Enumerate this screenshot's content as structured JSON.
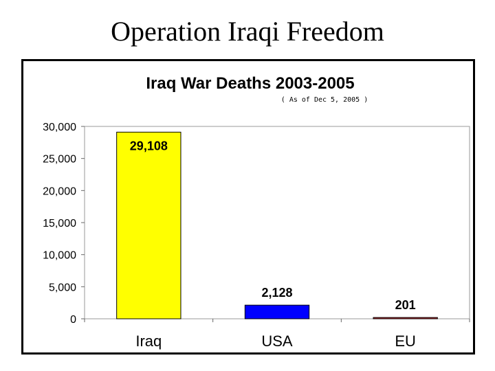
{
  "slide": {
    "title": "Operation Iraqi Freedom"
  },
  "chart_data": {
    "type": "bar",
    "title": "Iraq War Deaths 2003-2005",
    "subtitle": "( As of Dec 5, 2005 )",
    "categories": [
      "Iraq",
      "USA",
      "EU"
    ],
    "values": [
      29108,
      2128,
      201
    ],
    "data_labels": [
      "29,108",
      "2,128",
      "201"
    ],
    "colors": [
      "#ffff00",
      "#0000ff",
      "#c0282d"
    ],
    "ylim": [
      0,
      30000
    ],
    "yticks": [
      0,
      5000,
      10000,
      15000,
      20000,
      25000,
      30000
    ],
    "ytick_labels": [
      "0",
      "5,000",
      "10,000",
      "15,000",
      "20,000",
      "25,000",
      "30,000"
    ],
    "grid": false,
    "legend": "none"
  }
}
